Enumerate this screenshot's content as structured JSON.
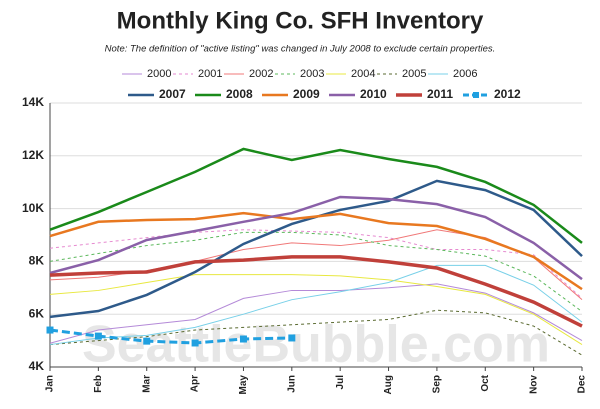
{
  "chart_data": {
    "type": "line",
    "title": "Monthly King Co. SFH Inventory",
    "subtitle": "Note: The definition of \"active listing\" was changed in July 2008 to exclude certain properties.",
    "watermark": "SeattleBubble.com",
    "categories": [
      "Jan",
      "Feb",
      "Mar",
      "Apr",
      "May",
      "Jun",
      "Jul",
      "Aug",
      "Sep",
      "Oct",
      "Nov",
      "Dec"
    ],
    "ylim": [
      4000,
      14000
    ],
    "yticks": [
      {
        "value": 4000,
        "label": "4K"
      },
      {
        "value": 6000,
        "label": "6K"
      },
      {
        "value": 8000,
        "label": "8K"
      },
      {
        "value": 10000,
        "label": "10K"
      },
      {
        "value": 12000,
        "label": "12K"
      },
      {
        "value": 14000,
        "label": "14K"
      }
    ],
    "grid": true,
    "legend": "top",
    "series": [
      {
        "name": "2000",
        "color": "#b48ad8",
        "linewidth": 1,
        "dashed": false,
        "values": [
          4900,
          5400,
          5600,
          5800,
          6600,
          6900,
          6900,
          7000,
          7150,
          6800,
          6050,
          5000
        ]
      },
      {
        "name": "2001",
        "color": "#e68ad0",
        "linewidth": 1,
        "dashed": true,
        "values": [
          8500,
          8700,
          8900,
          9100,
          9200,
          9150,
          9100,
          8900,
          8450,
          8450,
          8250,
          6600
        ]
      },
      {
        "name": "2002",
        "color": "#f07878",
        "linewidth": 1,
        "dashed": false,
        "values": [
          7300,
          7400,
          7650,
          8000,
          8450,
          8700,
          8600,
          8800,
          9200,
          8900,
          8150,
          6550
        ]
      },
      {
        "name": "2003",
        "color": "#5cb85c",
        "linewidth": 1,
        "dashed": true,
        "values": [
          8000,
          8300,
          8600,
          8800,
          9100,
          9100,
          9000,
          8600,
          8450,
          8200,
          7450,
          6100
        ]
      },
      {
        "name": "2004",
        "color": "#e8e840",
        "linewidth": 1,
        "dashed": false,
        "values": [
          6750,
          6900,
          7200,
          7500,
          7500,
          7500,
          7450,
          7300,
          7050,
          6750,
          6000,
          4850
        ]
      },
      {
        "name": "2005",
        "color": "#5a6a30",
        "linewidth": 1,
        "dashed": true,
        "values": [
          4850,
          5000,
          5150,
          5400,
          5500,
          5600,
          5700,
          5800,
          6150,
          6050,
          5550,
          4450
        ]
      },
      {
        "name": "2006",
        "color": "#78d0e8",
        "linewidth": 1,
        "dashed": false,
        "values": [
          4850,
          5100,
          5200,
          5500,
          6000,
          6550,
          6850,
          7200,
          7850,
          7850,
          7100,
          5700
        ]
      },
      {
        "name": "2007",
        "color": "#2e5a8a",
        "linewidth": 2.5,
        "dashed": false,
        "values": [
          5900,
          6120,
          6730,
          7600,
          8660,
          9420,
          9950,
          10290,
          11050,
          10700,
          9950,
          8200
        ]
      },
      {
        "name": "2008",
        "color": "#1a8a1a",
        "linewidth": 2.5,
        "dashed": false,
        "values": [
          9200,
          9870,
          10630,
          11390,
          12260,
          11840,
          12220,
          11880,
          11580,
          11010,
          10140,
          8700
        ]
      },
      {
        "name": "2009",
        "color": "#e87820",
        "linewidth": 2.5,
        "dashed": false,
        "values": [
          8960,
          9500,
          9570,
          9600,
          9830,
          9600,
          9800,
          9450,
          9340,
          8850,
          8170,
          6950
        ]
      },
      {
        "name": "2010",
        "color": "#8a60a8",
        "linewidth": 2.5,
        "dashed": false,
        "values": [
          7560,
          8050,
          8810,
          9150,
          9500,
          9830,
          10440,
          10360,
          10170,
          9680,
          8700,
          7330
        ]
      },
      {
        "name": "2011",
        "color": "#c0403a",
        "linewidth": 3.5,
        "dashed": false,
        "values": [
          7480,
          7560,
          7600,
          7980,
          8050,
          8170,
          8170,
          7980,
          7750,
          7140,
          6460,
          5550
        ]
      },
      {
        "name": "2012",
        "color": "#20a0e0",
        "linewidth": 3,
        "dashed": true,
        "marker": "square",
        "values": [
          5400,
          5170,
          4980,
          4910,
          5060,
          5100,
          null,
          null,
          null,
          null,
          null,
          null
        ]
      }
    ]
  }
}
